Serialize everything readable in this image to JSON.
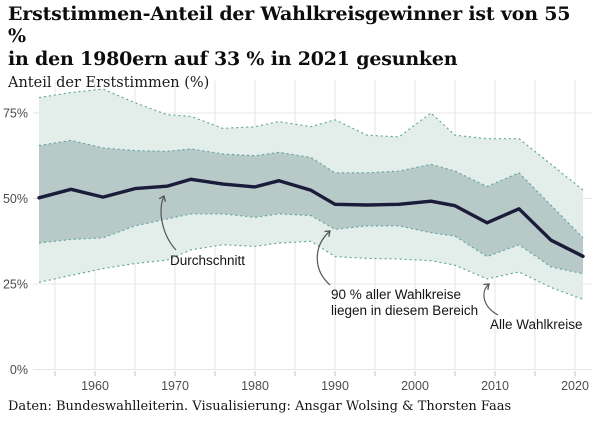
{
  "header": {
    "title_line1": "Erststimmen-Anteil der Wahlkreisgewinner ist von 55 %",
    "title_line2": "in den 1980ern auf 33 % in 2021 gesunken",
    "subtitle": "Anteil der Erststimmen (%)"
  },
  "footer": {
    "caption": "Daten: Bundeswahlleiterin. Visualisierung: Ansgar Wolsing & Thorsten Faas"
  },
  "annotations": {
    "average": {
      "label": "Durchschnitt"
    },
    "band90": {
      "line1": "90 % aller Wahlkreise",
      "line2": "liegen in diesem Bereich"
    },
    "all": {
      "label": "Alle Wahlkreise"
    }
  },
  "colors": {
    "average_line": "#1b1b3a",
    "inner_band_fill": "#b8cac8",
    "outer_band_fill": "#e3edea",
    "band_edge": "#5fa39f",
    "grid": "#e7e7e7",
    "tick": "#c9c9c9",
    "axis_text": "#4d4d4d",
    "arrow": "#555555"
  },
  "chart_data": {
    "type": "line",
    "title": "Erststimmen-Anteil der Wahlkreisgewinner ist von 55 % in den 1980ern auf 33 % in 2021 gesunken",
    "ylabel": "Anteil der Erststimmen (%)",
    "xlabel": "",
    "grid": true,
    "legend_position": "inline-annotations",
    "xlim": [
      1952,
      2022
    ],
    "ylim": [
      0,
      85
    ],
    "x": [
      1953,
      1957,
      1961,
      1965,
      1969,
      1972,
      1976,
      1980,
      1983,
      1987,
      1990,
      1994,
      1998,
      2002,
      2005,
      2009,
      2013,
      2017,
      2021
    ],
    "series": [
      {
        "name": "Durchschnitt",
        "role": "average-line",
        "values": [
          50.2,
          52.7,
          50.4,
          52.9,
          53.6,
          55.6,
          54.2,
          53.4,
          55.2,
          52.4,
          48.3,
          48.1,
          48.3,
          49.2,
          47.9,
          42.9,
          47.0,
          37.8,
          33.1
        ]
      },
      {
        "name": "90 % aller Wahlkreise liegen in diesem Bereich",
        "role": "inner-band",
        "upper": [
          65.5,
          67.0,
          64.8,
          64.0,
          63.8,
          64.5,
          63.0,
          62.5,
          63.5,
          62.0,
          57.5,
          57.5,
          58.0,
          60.0,
          58.0,
          53.5,
          57.5,
          48.0,
          38.5
        ],
        "lower": [
          37.0,
          38.0,
          38.5,
          42.0,
          44.0,
          45.5,
          45.5,
          44.5,
          45.5,
          45.0,
          41.0,
          42.0,
          42.0,
          40.0,
          39.0,
          33.0,
          36.5,
          30.0,
          28.0
        ]
      },
      {
        "name": "Alle Wahlkreise",
        "role": "outer-band",
        "upper": [
          79.5,
          81.0,
          82.0,
          78.0,
          74.5,
          74.0,
          70.5,
          71.0,
          72.5,
          71.0,
          73.0,
          68.5,
          68.0,
          75.0,
          68.5,
          67.5,
          67.5,
          60.0,
          52.5
        ],
        "lower": [
          25.5,
          27.5,
          29.5,
          31.0,
          32.0,
          35.0,
          36.5,
          36.0,
          37.0,
          37.5,
          33.0,
          32.5,
          32.3,
          31.8,
          30.5,
          26.5,
          28.5,
          24.0,
          20.5
        ]
      }
    ],
    "xticks_labeled": [
      1960,
      1970,
      1980,
      1990,
      2000,
      2010,
      2020
    ],
    "xticks_minor_step": 5,
    "yticks": [
      {
        "value": 0,
        "label": "0%"
      },
      {
        "value": 25,
        "label": "25%"
      },
      {
        "value": 50,
        "label": "50%"
      },
      {
        "value": 75,
        "label": "75%"
      }
    ]
  }
}
